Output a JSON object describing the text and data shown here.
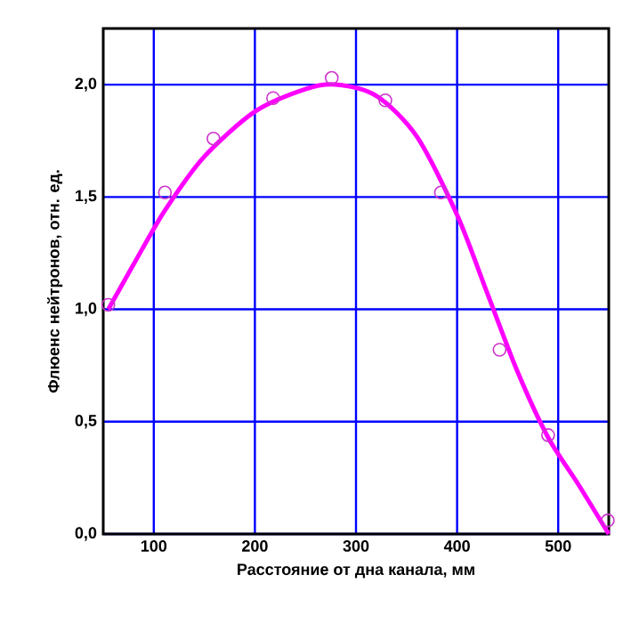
{
  "chart_data": {
    "type": "line",
    "xlabel": "Расстояние от дна канала, мм",
    "ylabel": "Флюенс нейтронов, отн. ед.",
    "xlim": [
      50,
      550
    ],
    "ylim": [
      0,
      2.25
    ],
    "xticks": [
      100,
      200,
      300,
      400,
      500
    ],
    "yticks": [
      {
        "value": 0,
        "label": "0,0"
      },
      {
        "value": 0.5,
        "label": "0,5"
      },
      {
        "value": 1,
        "label": "1,0"
      },
      {
        "value": 1.5,
        "label": "1,5"
      },
      {
        "value": 2,
        "label": "2,0"
      }
    ],
    "grid": true,
    "series": [
      {
        "color": "#ff00ff",
        "marker": "none",
        "x": [
          55,
          80,
          111,
          150,
          200,
          250,
          280,
          320,
          360,
          400,
          430,
          460,
          490,
          520,
          550
        ],
        "values": [
          1.0,
          1.2,
          1.44,
          1.68,
          1.88,
          1.98,
          2.0,
          1.95,
          1.77,
          1.42,
          1.07,
          0.72,
          0.43,
          0.22,
          0.0
        ]
      },
      {
        "type": "scatter",
        "color": "#cc33cc",
        "marker": "circle",
        "x": [
          55,
          111,
          159,
          218,
          276,
          329,
          384,
          442,
          490,
          549
        ],
        "values": [
          1.02,
          1.52,
          1.76,
          1.94,
          2.03,
          1.93,
          1.52,
          0.82,
          0.44,
          0.06
        ]
      }
    ]
  }
}
